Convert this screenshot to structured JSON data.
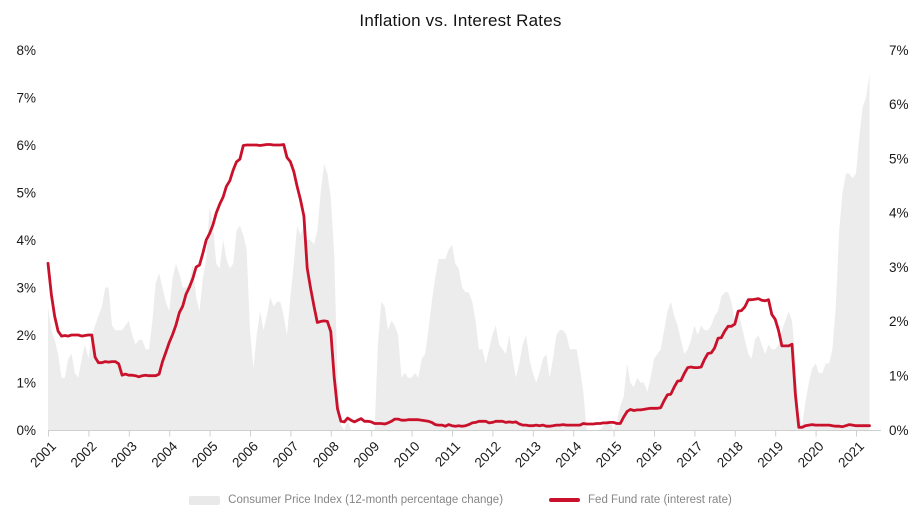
{
  "title": "Inflation vs. Interest Rates",
  "legend": [
    {
      "label": "Consumer Price Index (12-month percentage change)",
      "swatch": "area",
      "color": "#e9e9e9"
    },
    {
      "label": "Fed Fund rate (interest rate)",
      "swatch": "line",
      "color": "#c9112b"
    }
  ],
  "colors": {
    "cpi_area": "#ececec",
    "fed_line": "#c9112b",
    "axis_line": "#cfcfcf",
    "tick_label": "#1a1a1a",
    "legend_text": "#868686"
  },
  "chart_data": {
    "type": "area",
    "title": "Inflation vs. Interest Rates",
    "xlabel": "",
    "ylabel_left": "percent",
    "ylabel_right": "percent",
    "grid": false,
    "legend_position": "bottom-center",
    "x_tick_labels": [
      "2001",
      "2002",
      "2003",
      "2004",
      "2005",
      "2006",
      "2007",
      "2008",
      "2009",
      "2010",
      "2011",
      "2012",
      "2013",
      "2014",
      "2015",
      "2016",
      "2017",
      "2018",
      "2019",
      "2020",
      "2021"
    ],
    "left_axis": {
      "min": 0,
      "max": 8,
      "tick_labels": [
        "0%",
        "1%",
        "2%",
        "3%",
        "4%",
        "5%",
        "6%",
        "7%",
        "8%"
      ]
    },
    "right_axis": {
      "min": 0,
      "max": 7,
      "tick_labels": [
        "0%",
        "1%",
        "2%",
        "3%",
        "4%",
        "5%",
        "6%",
        "7%"
      ]
    },
    "months_per_point": 1,
    "series": [
      {
        "name": "Consumer Price Index (12-month percentage change)",
        "type": "area",
        "axis": "left",
        "color": "#ececec",
        "clamp_min": 0,
        "values": [
          2.6,
          2.1,
          1.9,
          1.6,
          1.1,
          1.1,
          1.5,
          1.6,
          1.2,
          1.1,
          1.5,
          1.8,
          1.5,
          2.0,
          2.2,
          2.4,
          2.6,
          3.0,
          3.0,
          2.2,
          2.1,
          2.1,
          2.1,
          2.2,
          2.3,
          2.0,
          1.8,
          1.9,
          1.9,
          1.7,
          1.7,
          2.3,
          3.1,
          3.3,
          3.0,
          2.7,
          2.5,
          3.2,
          3.5,
          3.3,
          3.0,
          3.0,
          3.1,
          3.5,
          2.8,
          2.5,
          3.2,
          3.6,
          4.7,
          4.3,
          3.5,
          3.4,
          4.0,
          3.6,
          3.4,
          3.5,
          4.2,
          4.3,
          4.1,
          3.8,
          2.1,
          1.3,
          2.0,
          2.5,
          2.1,
          2.4,
          2.8,
          2.6,
          2.7,
          2.7,
          2.4,
          2.0,
          2.8,
          3.5,
          4.3,
          4.1,
          4.3,
          4.0,
          4.0,
          3.9,
          4.2,
          5.0,
          5.6,
          5.4,
          4.9,
          3.7,
          1.1,
          0.1,
          0.0,
          0.2,
          -0.4,
          -0.7,
          -1.3,
          -1.4,
          -2.1,
          -1.5,
          -1.3,
          -0.2,
          1.8,
          2.7,
          2.6,
          2.1,
          2.3,
          2.2,
          2.0,
          1.1,
          1.2,
          1.1,
          1.1,
          1.2,
          1.1,
          1.5,
          1.6,
          2.1,
          2.7,
          3.2,
          3.6,
          3.6,
          3.6,
          3.8,
          3.9,
          3.5,
          3.4,
          3.0,
          2.9,
          2.9,
          2.7,
          2.3,
          1.7,
          1.7,
          1.4,
          1.7,
          2.0,
          2.2,
          1.8,
          1.7,
          1.6,
          2.0,
          1.5,
          1.1,
          1.4,
          1.8,
          2.0,
          1.5,
          1.2,
          1.0,
          1.2,
          1.5,
          1.6,
          1.1,
          1.5,
          2.0,
          2.1,
          2.1,
          2.0,
          1.7,
          1.7,
          1.7,
          1.3,
          0.8,
          -0.1,
          0.0,
          -0.1,
          -0.2,
          0.0,
          0.1,
          0.2,
          0.2,
          0.0,
          0.2,
          0.5,
          0.7,
          1.4,
          1.0,
          0.9,
          1.1,
          1.0,
          1.0,
          0.8,
          1.1,
          1.5,
          1.6,
          1.7,
          2.1,
          2.5,
          2.7,
          2.4,
          2.2,
          1.9,
          1.6,
          1.7,
          1.9,
          2.2,
          2.0,
          2.2,
          2.1,
          2.1,
          2.2,
          2.4,
          2.5,
          2.8,
          2.9,
          2.9,
          2.7,
          2.3,
          2.5,
          2.2,
          1.9,
          1.6,
          1.5,
          1.9,
          2.0,
          1.8,
          1.6,
          1.8,
          1.7,
          1.7,
          1.8,
          2.1,
          2.3,
          2.5,
          2.3,
          1.5,
          0.3,
          0.1,
          0.6,
          1.0,
          1.3,
          1.4,
          1.2,
          1.2,
          1.4,
          1.4,
          1.7,
          2.6,
          4.2,
          5.0,
          5.4,
          5.4,
          5.3,
          5.4,
          6.2,
          6.8,
          7.0,
          7.5
        ]
      },
      {
        "name": "Fed Fund rate (interest rate)",
        "type": "line",
        "axis": "right",
        "color": "#c9112b",
        "values": [
          3.07,
          2.49,
          2.09,
          1.82,
          1.73,
          1.74,
          1.73,
          1.75,
          1.75,
          1.75,
          1.73,
          1.74,
          1.75,
          1.75,
          1.34,
          1.24,
          1.24,
          1.26,
          1.25,
          1.26,
          1.26,
          1.22,
          1.01,
          1.03,
          1.01,
          1.01,
          1.0,
          0.98,
          1.0,
          1.01,
          1.0,
          1.0,
          1.0,
          1.03,
          1.26,
          1.43,
          1.61,
          1.76,
          1.93,
          2.16,
          2.28,
          2.5,
          2.63,
          2.79,
          3.0,
          3.04,
          3.26,
          3.5,
          3.62,
          3.78,
          4.0,
          4.16,
          4.29,
          4.49,
          4.59,
          4.79,
          4.94,
          4.99,
          5.24,
          5.25,
          5.25,
          5.25,
          5.25,
          5.24,
          5.25,
          5.26,
          5.26,
          5.25,
          5.25,
          5.25,
          5.26,
          5.02,
          4.94,
          4.76,
          4.49,
          4.24,
          3.94,
          2.98,
          2.61,
          2.28,
          1.98,
          2.0,
          2.01,
          2.0,
          1.81,
          0.97,
          0.39,
          0.16,
          0.15,
          0.22,
          0.18,
          0.15,
          0.18,
          0.21,
          0.16,
          0.16,
          0.15,
          0.12,
          0.12,
          0.12,
          0.11,
          0.13,
          0.16,
          0.2,
          0.2,
          0.18,
          0.18,
          0.19,
          0.19,
          0.19,
          0.19,
          0.18,
          0.17,
          0.16,
          0.14,
          0.1,
          0.09,
          0.09,
          0.07,
          0.1,
          0.08,
          0.07,
          0.08,
          0.07,
          0.08,
          0.1,
          0.13,
          0.14,
          0.16,
          0.16,
          0.16,
          0.13,
          0.14,
          0.16,
          0.16,
          0.16,
          0.14,
          0.15,
          0.14,
          0.15,
          0.11,
          0.09,
          0.09,
          0.08,
          0.08,
          0.09,
          0.08,
          0.09,
          0.07,
          0.07,
          0.08,
          0.09,
          0.09,
          0.1,
          0.09,
          0.09,
          0.09,
          0.09,
          0.09,
          0.12,
          0.11,
          0.11,
          0.11,
          0.12,
          0.12,
          0.13,
          0.13,
          0.14,
          0.14,
          0.12,
          0.12,
          0.24,
          0.34,
          0.38,
          0.36,
          0.37,
          0.37,
          0.38,
          0.39,
          0.4,
          0.4,
          0.4,
          0.41,
          0.54,
          0.65,
          0.66,
          0.79,
          0.9,
          0.91,
          1.04,
          1.15,
          1.16,
          1.15,
          1.15,
          1.16,
          1.3,
          1.41,
          1.42,
          1.51,
          1.69,
          1.7,
          1.82,
          1.91,
          1.91,
          1.95,
          2.19,
          2.2,
          2.27,
          2.4,
          2.4,
          2.41,
          2.42,
          2.39,
          2.38,
          2.4,
          2.13,
          2.04,
          1.83,
          1.55,
          1.55,
          1.55,
          1.58,
          0.65,
          0.05,
          0.05,
          0.08,
          0.09,
          0.1,
          0.09,
          0.09,
          0.09,
          0.09,
          0.09,
          0.08,
          0.07,
          0.07,
          0.06,
          0.08,
          0.1,
          0.09,
          0.08,
          0.08,
          0.08,
          0.08,
          0.08
        ]
      }
    ]
  }
}
